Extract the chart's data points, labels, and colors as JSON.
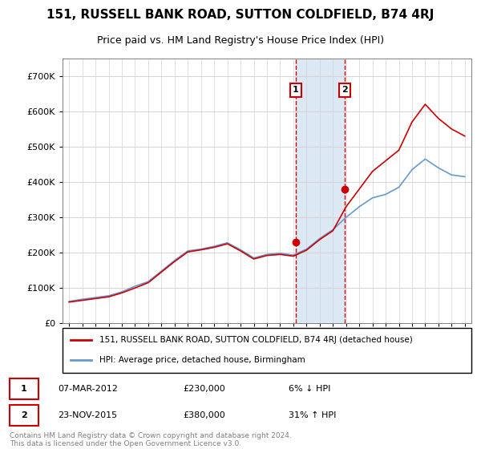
{
  "title": "151, RUSSELL BANK ROAD, SUTTON COLDFIELD, B74 4RJ",
  "subtitle": "Price paid vs. HM Land Registry's House Price Index (HPI)",
  "title_fontsize": 11,
  "subtitle_fontsize": 9,
  "legend_label_red": "151, RUSSELL BANK ROAD, SUTTON COLDFIELD, B74 4RJ (detached house)",
  "legend_label_blue": "HPI: Average price, detached house, Birmingham",
  "annotation1_label": "1",
  "annotation1_date": "07-MAR-2012",
  "annotation1_price": "£230,000",
  "annotation1_hpi": "6% ↓ HPI",
  "annotation2_label": "2",
  "annotation2_date": "23-NOV-2015",
  "annotation2_price": "£380,000",
  "annotation2_hpi": "31% ↑ HPI",
  "copyright": "Contains HM Land Registry data © Crown copyright and database right 2024.\nThis data is licensed under the Open Government Licence v3.0.",
  "red_color": "#cc0000",
  "blue_color": "#6699cc",
  "highlight_color": "#dce9f5",
  "annotation_box_color": "#cc0000",
  "ylim": [
    0,
    750000
  ],
  "yticks": [
    0,
    100000,
    200000,
    300000,
    400000,
    500000,
    600000,
    700000
  ],
  "ytick_labels": [
    "£0",
    "£100K",
    "£200K",
    "£300K",
    "£400K",
    "£500K",
    "£600K",
    "£700K"
  ],
  "sale1_year": 2012.18,
  "sale1_price": 230000,
  "sale2_year": 2015.9,
  "sale2_price": 380000,
  "hpi_years": [
    1995,
    1996,
    1997,
    1998,
    1999,
    2000,
    2001,
    2002,
    2003,
    2004,
    2005,
    2006,
    2007,
    2008,
    2009,
    2010,
    2011,
    2012,
    2013,
    2014,
    2015,
    2016,
    2017,
    2018,
    2019,
    2020,
    2021,
    2022,
    2023,
    2024,
    2025
  ],
  "hpi_values": [
    62000,
    68000,
    73000,
    78000,
    89000,
    105000,
    118000,
    148000,
    178000,
    205000,
    210000,
    218000,
    228000,
    208000,
    185000,
    195000,
    198000,
    193000,
    210000,
    240000,
    265000,
    300000,
    330000,
    355000,
    365000,
    385000,
    435000,
    465000,
    440000,
    420000,
    415000
  ],
  "red_years": [
    1995,
    1996,
    1997,
    1998,
    1999,
    2000,
    2001,
    2002,
    2003,
    2004,
    2005,
    2006,
    2007,
    2008,
    2009,
    2010,
    2011,
    2012,
    2013,
    2014,
    2015,
    2016,
    2017,
    2018,
    2019,
    2020,
    2021,
    2022,
    2023,
    2024,
    2025
  ],
  "red_values": [
    60000,
    65000,
    70000,
    75000,
    86000,
    100000,
    115000,
    145000,
    175000,
    202000,
    208000,
    215000,
    225000,
    205000,
    182000,
    192000,
    195000,
    190000,
    207000,
    237000,
    262000,
    330000,
    380000,
    430000,
    460000,
    490000,
    570000,
    620000,
    580000,
    550000,
    530000
  ],
  "xmin": 1994.5,
  "xmax": 2025.5
}
